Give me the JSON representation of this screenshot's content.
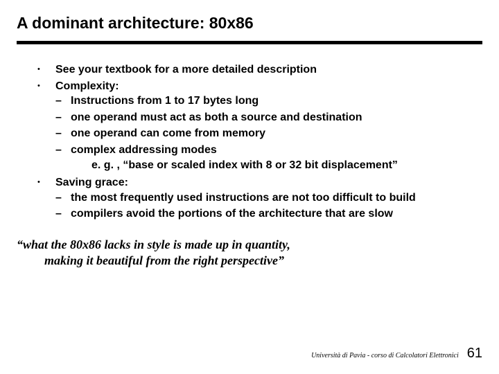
{
  "title": "A dominant architecture:  80x86",
  "bullets": [
    {
      "text": "See your textbook for a more detailed description",
      "subs": []
    },
    {
      "text": "Complexity:",
      "subs": [
        {
          "text": "Instructions from 1 to 17 bytes long"
        },
        {
          "text": "one operand must act as both a source and destination"
        },
        {
          "text": "one operand can come from memory"
        },
        {
          "text": "complex addressing modes",
          "example": "e. g. , “base or scaled index with 8 or 32 bit displacement”"
        }
      ]
    },
    {
      "text": "Saving grace:",
      "subs": [
        {
          "text": "the most frequently used instructions are not too difficult to build"
        },
        {
          "text": "compilers avoid the portions of the architecture that are slow"
        }
      ]
    }
  ],
  "quote": {
    "line1": "“what the 80x86 lacks in style is made up in quantity,",
    "line2": "making it beautiful from the right perspective”"
  },
  "footer": {
    "text": "Università di Pavia  - corso di Calcolatori Elettronici",
    "page": "61"
  },
  "style": {
    "background_color": "#ffffff",
    "text_color": "#000000",
    "rule_color": "#000000",
    "title_fontsize": 23,
    "body_fontsize": 16,
    "quote_fontsize": 18,
    "footer_fontsize": 10,
    "page_fontsize": 20
  }
}
